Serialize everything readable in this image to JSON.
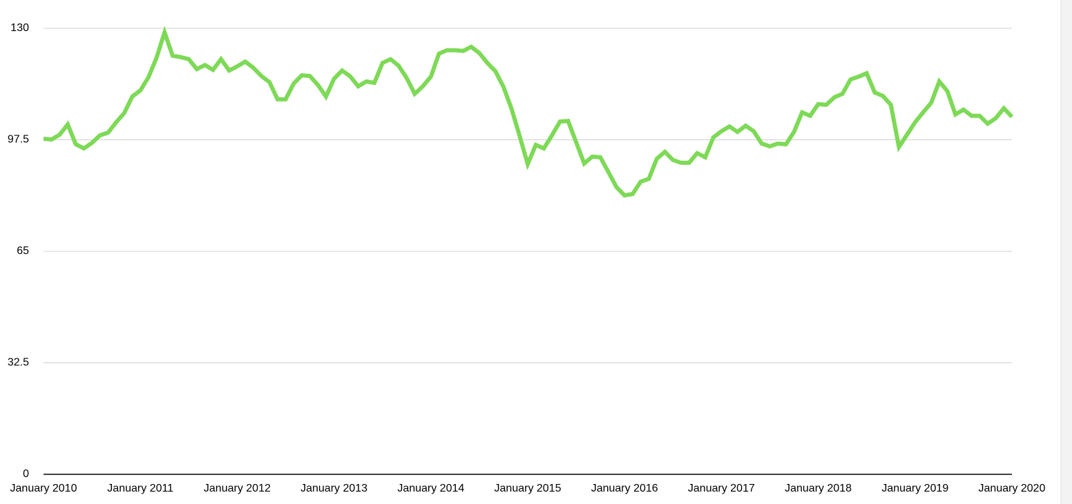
{
  "chart_data": {
    "type": "line",
    "categories": [
      "January 2010",
      null,
      null,
      null,
      null,
      null,
      null,
      null,
      null,
      null,
      null,
      null,
      "January 2011",
      null,
      null,
      null,
      null,
      null,
      null,
      null,
      null,
      null,
      null,
      null,
      "January 2012",
      null,
      null,
      null,
      null,
      null,
      null,
      null,
      null,
      null,
      null,
      null,
      "January 2013",
      null,
      null,
      null,
      null,
      null,
      null,
      null,
      null,
      null,
      null,
      null,
      "January 2014",
      null,
      null,
      null,
      null,
      null,
      null,
      null,
      null,
      null,
      null,
      null,
      "January 2015",
      null,
      null,
      null,
      null,
      null,
      null,
      null,
      null,
      null,
      null,
      null,
      "January 2016",
      null,
      null,
      null,
      null,
      null,
      null,
      null,
      null,
      null,
      null,
      null,
      "January 2017",
      null,
      null,
      null,
      null,
      null,
      null,
      null,
      null,
      null,
      null,
      null,
      "January 2018",
      null,
      null,
      null,
      null,
      null,
      null,
      null,
      null,
      null,
      null,
      null,
      "January 2019",
      null,
      null,
      null,
      null,
      null,
      null,
      null,
      null,
      null,
      null,
      null,
      "January 2020"
    ],
    "values": [
      97.8,
      97.6,
      99.0,
      102.0,
      96.2,
      95.0,
      96.6,
      98.8,
      99.6,
      102.6,
      105.3,
      110.1,
      111.9,
      115.7,
      121.4,
      128.8,
      122.0,
      121.6,
      121.0,
      118.1,
      119.3,
      117.9,
      121.0,
      117.7,
      118.9,
      120.3,
      118.5,
      116.1,
      114.3,
      109.3,
      109.3,
      113.9,
      116.3,
      116.1,
      113.5,
      110.1,
      115.3,
      117.7,
      116.0,
      113.1,
      114.5,
      114.1,
      119.9,
      121.0,
      119.1,
      115.5,
      110.9,
      113.1,
      115.9,
      122.6,
      123.6,
      123.6,
      123.4,
      124.6,
      122.8,
      119.9,
      117.5,
      112.9,
      106.5,
      98.6,
      90.4,
      96.0,
      95.0,
      98.8,
      102.8,
      103.0,
      96.8,
      90.6,
      92.6,
      92.4,
      88.1,
      83.7,
      81.3,
      81.7,
      85.3,
      86.1,
      92.0,
      94.0,
      91.6,
      90.8,
      90.8,
      93.6,
      92.4,
      98.2,
      100.0,
      101.4,
      99.8,
      101.6,
      100.0,
      96.4,
      95.6,
      96.4,
      96.2,
      99.8,
      105.5,
      104.5,
      107.9,
      107.7,
      109.9,
      110.9,
      115.1,
      115.9,
      116.9,
      111.3,
      110.3,
      107.7,
      95.4,
      99.0,
      102.6,
      105.5,
      108.3,
      114.5,
      111.7,
      104.9,
      106.3,
      104.5,
      104.5,
      102.2,
      103.8,
      106.7,
      104.2
    ],
    "color": "#7ed957",
    "ylim": [
      0,
      130
    ],
    "yticks": [
      0,
      32.5,
      65,
      97.5,
      130
    ],
    "grid": true
  }
}
